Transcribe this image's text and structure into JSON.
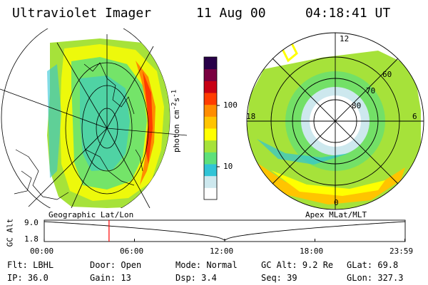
{
  "header": {
    "instrument": "Ultraviolet Imager",
    "date": "11 Aug 00",
    "time": "04:18:41 UT"
  },
  "colorbar": {
    "unit_label": "photon cm",
    "unit_sup1": "-2",
    "unit_s": "s",
    "unit_sup2": "-1",
    "tick_100": "100",
    "tick_10": "10",
    "log_min": 0.4,
    "log_max": 2.8,
    "stops": [
      "#ffffff",
      "#cde8ee",
      "#31c4d6",
      "#5ee07a",
      "#a6e23a",
      "#ffff00",
      "#ffc400",
      "#ff8c00",
      "#ff3c00",
      "#c80014",
      "#7a0040",
      "#280048"
    ]
  },
  "geo_panel": {
    "caption": "Geographic Lat/Lon"
  },
  "polar_panel": {
    "caption": "Apex MLat/MLT",
    "mlt_labels": {
      "top": "12",
      "left": "18",
      "right": "6",
      "bottom": "0"
    },
    "lat_labels": [
      "60",
      "70",
      "80"
    ]
  },
  "altitude_track": {
    "axis_label": "GC Alt",
    "y_top": "9.0",
    "y_bottom": "1.8",
    "y_top_value": 9.0,
    "y_bottom_value": 1.8,
    "x_ticks": [
      "00:00",
      "06:00",
      "12:00",
      "18:00",
      "23:59"
    ],
    "x_tick_hours": [
      0,
      6,
      12,
      18,
      23.98
    ],
    "current_hour": 4.31,
    "marker_color": "#ff0000"
  },
  "status": {
    "filter_label": "Flt:",
    "filter_value": "LBHL",
    "door_label": "Door:",
    "door_value": "Open",
    "mode_label": "Mode:",
    "mode_value": "Normal",
    "gcalt_label": "GC Alt:",
    "gcalt_value": "9.2 Re",
    "glat_label": "GLat:",
    "glat_value": "69.8",
    "ip_label": "IP:",
    "ip_value": "36.0",
    "gain_label": "Gain:",
    "gain_value": "13",
    "dsp_label": "Dsp:",
    "dsp_value": "3.4",
    "seq_label": "Seq:",
    "seq_value": "39",
    "glon_label": "GLon:",
    "glon_value": "327.3"
  }
}
